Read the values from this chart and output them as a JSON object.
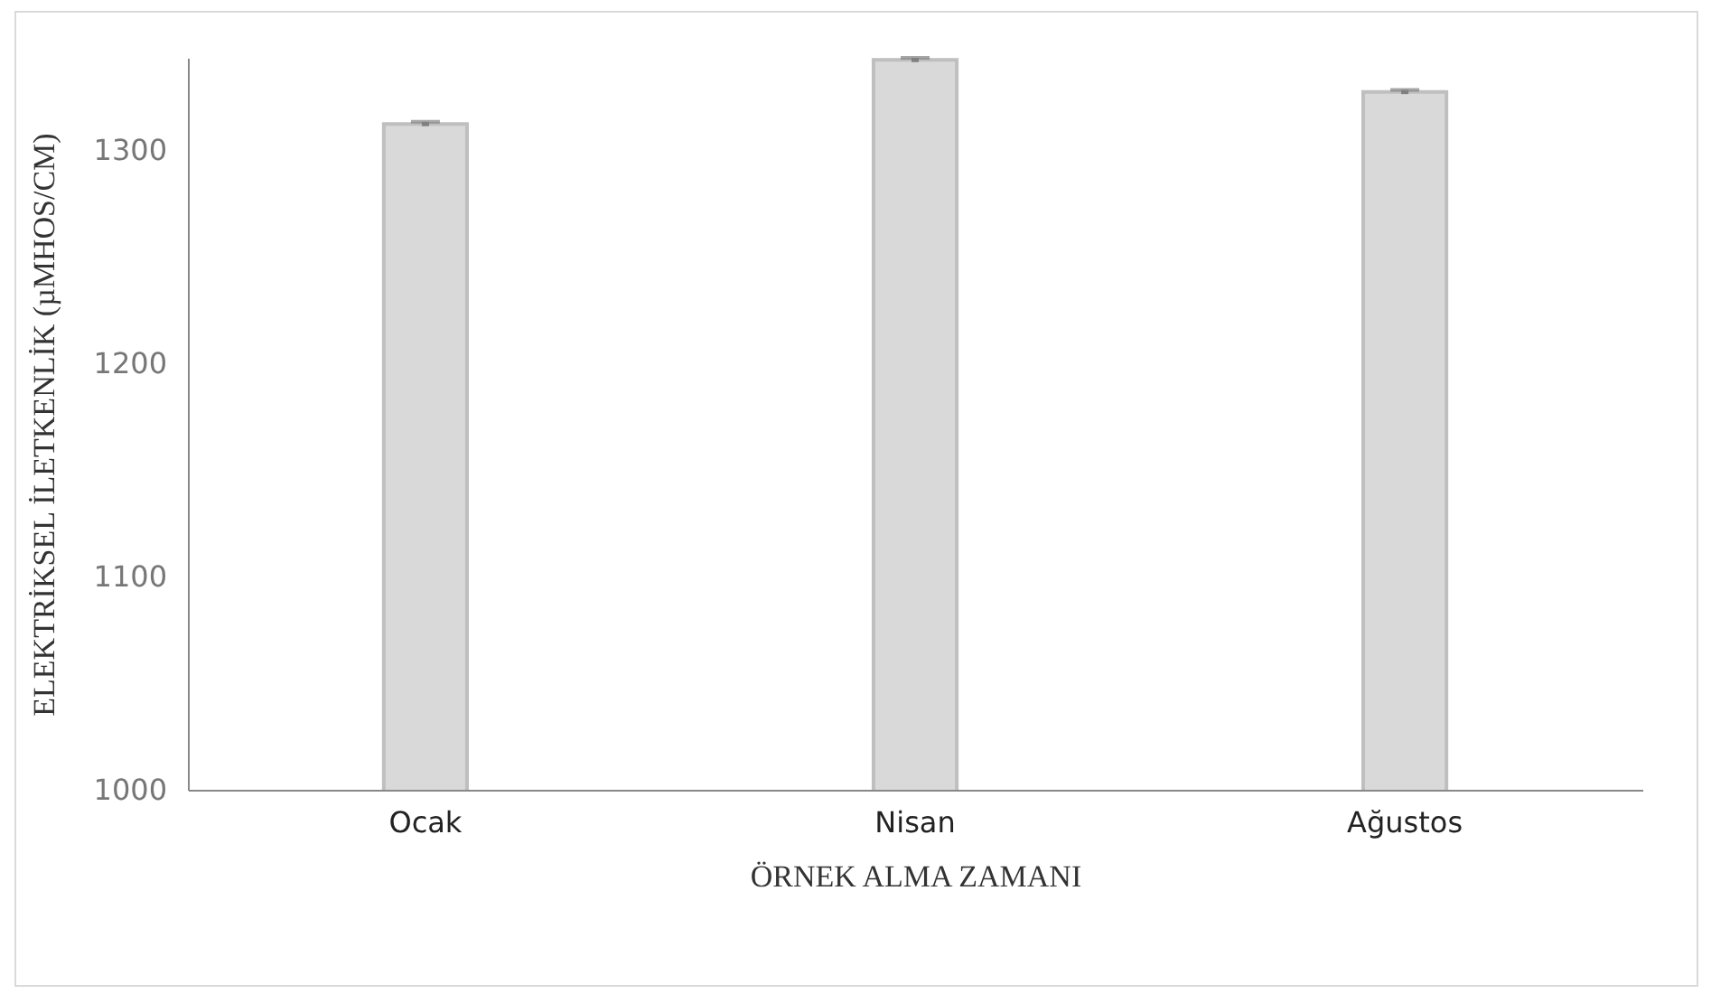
{
  "chart_data": {
    "type": "bar",
    "xlabel": "ÖRNEK ALMA ZAMANI",
    "ylabel": "ELEKTRİKSEL İLETKENLİK (µMHOS/CM)",
    "categories": [
      "Ocak",
      "Nisan",
      "Ağustos"
    ],
    "values": [
      1312,
      1342,
      1327
    ],
    "errors": [
      1,
      1,
      1
    ],
    "color": "#d9d9d9",
    "ylim": [
      1000,
      1343
    ],
    "yticks": [
      1000,
      1100,
      1200,
      1300
    ],
    "grid": false
  }
}
